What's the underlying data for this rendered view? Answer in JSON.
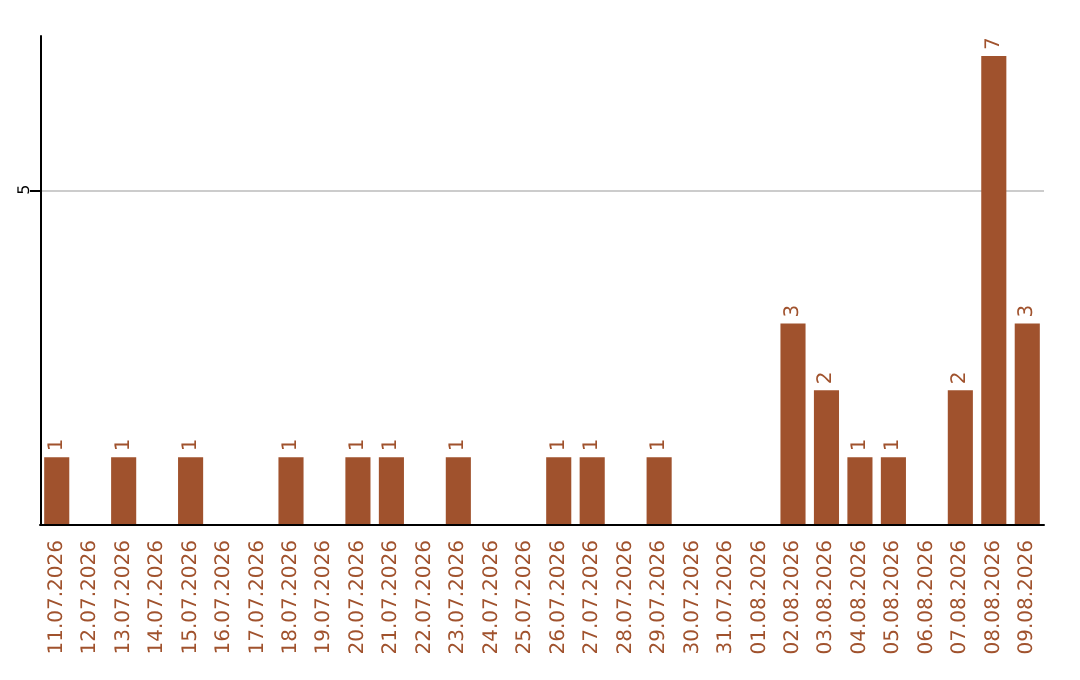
{
  "chart_data": {
    "type": "bar",
    "categories": [
      "11.07.2026",
      "12.07.2026",
      "13.07.2026",
      "14.07.2026",
      "15.07.2026",
      "16.07.2026",
      "17.07.2026",
      "18.07.2026",
      "19.07.2026",
      "20.07.2026",
      "21.07.2026",
      "22.07.2026",
      "23.07.2026",
      "24.07.2026",
      "25.07.2026",
      "26.07.2026",
      "27.07.2026",
      "28.07.2026",
      "29.07.2026",
      "30.07.2026",
      "31.07.2026",
      "01.08.2026",
      "02.08.2026",
      "03.08.2026",
      "04.08.2026",
      "05.08.2026",
      "06.08.2026",
      "07.08.2026",
      "08.08.2026",
      "09.08.2026"
    ],
    "values": [
      1,
      0,
      1,
      0,
      1,
      0,
      0,
      1,
      0,
      1,
      1,
      0,
      1,
      0,
      0,
      1,
      1,
      0,
      1,
      0,
      0,
      0,
      3,
      2,
      1,
      1,
      0,
      2,
      7,
      3
    ],
    "value_labels": [
      "1",
      null,
      "1",
      null,
      "1",
      null,
      null,
      "1",
      null,
      "1",
      "1",
      null,
      "1",
      null,
      null,
      "1",
      "1",
      null,
      "1",
      null,
      null,
      null,
      "3",
      "2",
      "1",
      "1",
      null,
      "2",
      "7",
      "3"
    ],
    "color": "#a0522d",
    "ylim": [
      0,
      7.3
    ],
    "yticks": [
      5
    ],
    "grid": "y"
  }
}
